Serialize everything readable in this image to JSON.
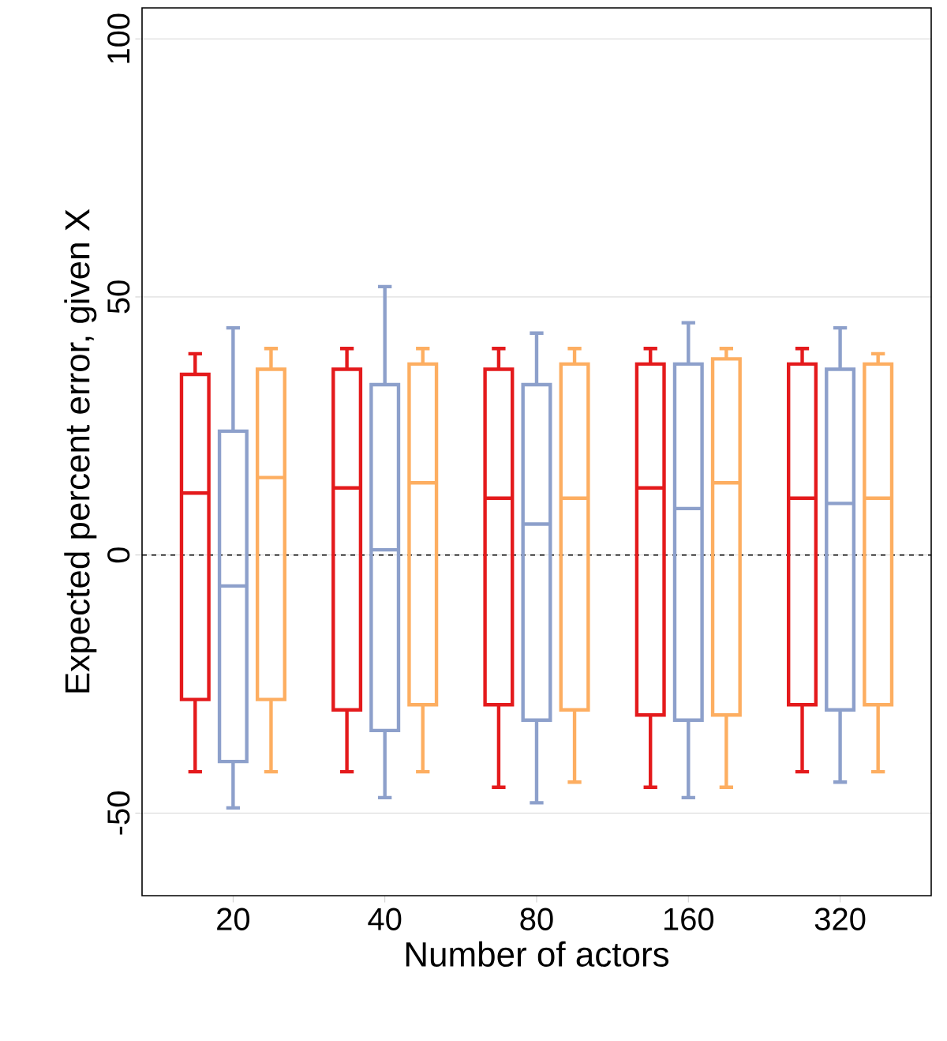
{
  "chart_data": {
    "type": "box",
    "xlabel": "Number of actors",
    "ylabel": "Expected percent error, given X",
    "categories": [
      "20",
      "40",
      "80",
      "160",
      "320"
    ],
    "ylim": [
      -66,
      106
    ],
    "yticks": [
      -50,
      0,
      50,
      100
    ],
    "grid": "y",
    "ref_lines": [
      {
        "axis": "y",
        "value": 0,
        "color": "#000000",
        "line_style": "dashed"
      }
    ],
    "series": [
      {
        "color": "#e41a1c",
        "boxes": [
          {
            "low": -42,
            "q1": -28,
            "median": 12,
            "q3": 35,
            "high": 39
          },
          {
            "low": -42,
            "q1": -30,
            "median": 13,
            "q3": 36,
            "high": 40
          },
          {
            "low": -45,
            "q1": -29,
            "median": 11,
            "q3": 36,
            "high": 40
          },
          {
            "low": -45,
            "q1": -31,
            "median": 13,
            "q3": 37,
            "high": 40
          },
          {
            "low": -42,
            "q1": -29,
            "median": 11,
            "q3": 37,
            "high": 40
          }
        ]
      },
      {
        "color": "#8da0cb",
        "boxes": [
          {
            "low": -49,
            "q1": -40,
            "median": -6,
            "q3": 24,
            "high": 44
          },
          {
            "low": -47,
            "q1": -34,
            "median": 1,
            "q3": 33,
            "high": 52
          },
          {
            "low": -48,
            "q1": -32,
            "median": 6,
            "q3": 33,
            "high": 43
          },
          {
            "low": -47,
            "q1": -32,
            "median": 9,
            "q3": 37,
            "high": 45
          },
          {
            "low": -44,
            "q1": -30,
            "median": 10,
            "q3": 36,
            "high": 44
          }
        ]
      },
      {
        "color": "#fdae61",
        "boxes": [
          {
            "low": -42,
            "q1": -28,
            "median": 15,
            "q3": 36,
            "high": 40
          },
          {
            "low": -42,
            "q1": -29,
            "median": 14,
            "q3": 37,
            "high": 40
          },
          {
            "low": -44,
            "q1": -30,
            "median": 11,
            "q3": 37,
            "high": 40
          },
          {
            "low": -45,
            "q1": -31,
            "median": 14,
            "q3": 38,
            "high": 40
          },
          {
            "low": -42,
            "q1": -29,
            "median": 11,
            "q3": 37,
            "high": 39
          }
        ]
      }
    ]
  }
}
